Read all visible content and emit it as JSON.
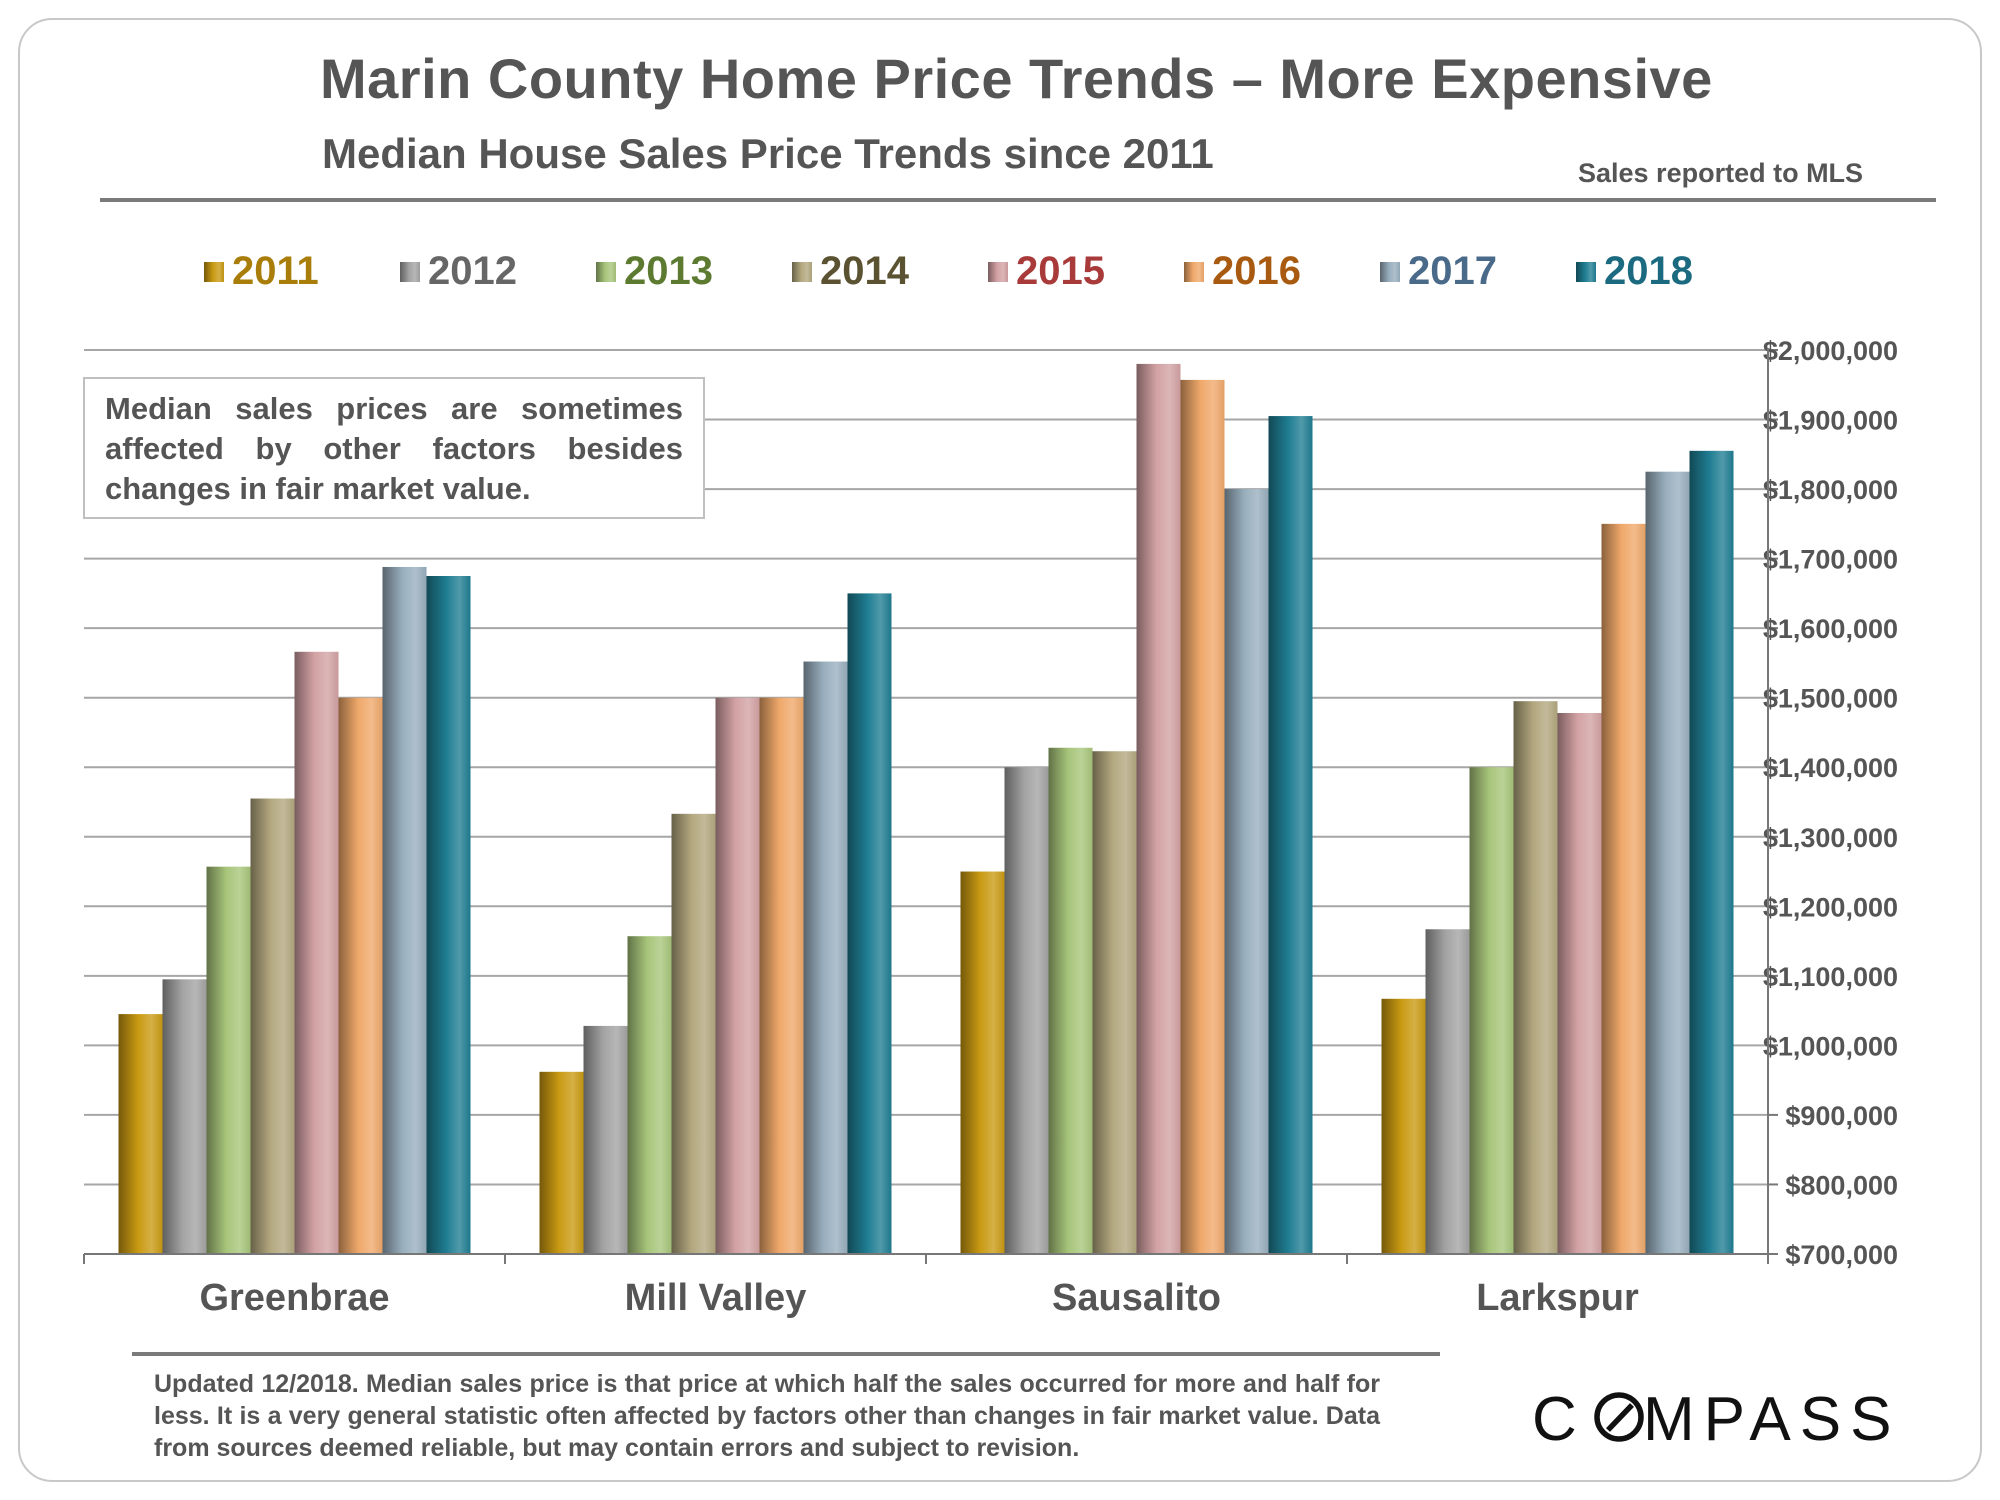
{
  "header": {
    "title": "Marin County Home Price Trends – More Expensive",
    "subtitle": "Median House Sales Price Trends since 2011",
    "note": "Sales reported to MLS"
  },
  "callout": {
    "text": "Median sales prices are sometimes affected by other factors besides changes in fair market value."
  },
  "footer": {
    "text": "Updated 12/2018. Median sales price is that price at which half the sales occurred for more and half for less. It is a very general statistic often affected by factors other than changes in fair market value. Data from sources deemed reliable, but may contain errors and subject to revision.",
    "logo": "COMPASS"
  },
  "chart_data": {
    "type": "bar",
    "title": "Median House Sales Price Trends since 2011",
    "xlabel": "",
    "ylabel": "",
    "ylim": [
      700000,
      2000000
    ],
    "y_ticks": [
      700000,
      800000,
      900000,
      1000000,
      1100000,
      1200000,
      1300000,
      1400000,
      1500000,
      1600000,
      1700000,
      1800000,
      1900000,
      2000000
    ],
    "y_tick_labels": [
      "$700,000",
      "$800,000",
      "$900,000",
      "$1,000,000",
      "$1,100,000",
      "$1,200,000",
      "$1,300,000",
      "$1,400,000",
      "$1,500,000",
      "$1,600,000",
      "$1,700,000",
      "$1,800,000",
      "$1,900,000",
      "$2,000,000"
    ],
    "y_axis_side": "right",
    "grid": true,
    "legend_position": "top",
    "categories": [
      "Greenbrae",
      "Mill Valley",
      "Sausalito",
      "Larkspur"
    ],
    "series": [
      {
        "name": "2011",
        "color": "#c99a12",
        "label_color": "#a97d0a",
        "values": [
          1045000,
          962000,
          1250000,
          1067000
        ]
      },
      {
        "name": "2012",
        "color": "#a3a3a3",
        "label_color": "#666666",
        "values": [
          1095000,
          1028000,
          1400000,
          1167000
        ]
      },
      {
        "name": "2013",
        "color": "#a7c57a",
        "label_color": "#5c7a30",
        "values": [
          1257000,
          1157000,
          1428000,
          1400000
        ]
      },
      {
        "name": "2014",
        "color": "#b2a77e",
        "label_color": "#5a5230",
        "values": [
          1355000,
          1333000,
          1423000,
          1495000
        ]
      },
      {
        "name": "2015",
        "color": "#d2a1a3",
        "label_color": "#a83a3a",
        "values": [
          1566000,
          1500000,
          1980000,
          1478000
        ]
      },
      {
        "name": "2016",
        "color": "#efa86a",
        "label_color": "#a85a10",
        "values": [
          1500000,
          1500000,
          1957000,
          1750000
        ]
      },
      {
        "name": "2017",
        "color": "#98aebd",
        "label_color": "#4a6a8a",
        "values": [
          1688000,
          1552000,
          1800000,
          1825000
        ]
      },
      {
        "name": "2018",
        "color": "#1f7d92",
        "label_color": "#1c6a80",
        "values": [
          1675000,
          1650000,
          1905000,
          1855000
        ]
      }
    ]
  }
}
